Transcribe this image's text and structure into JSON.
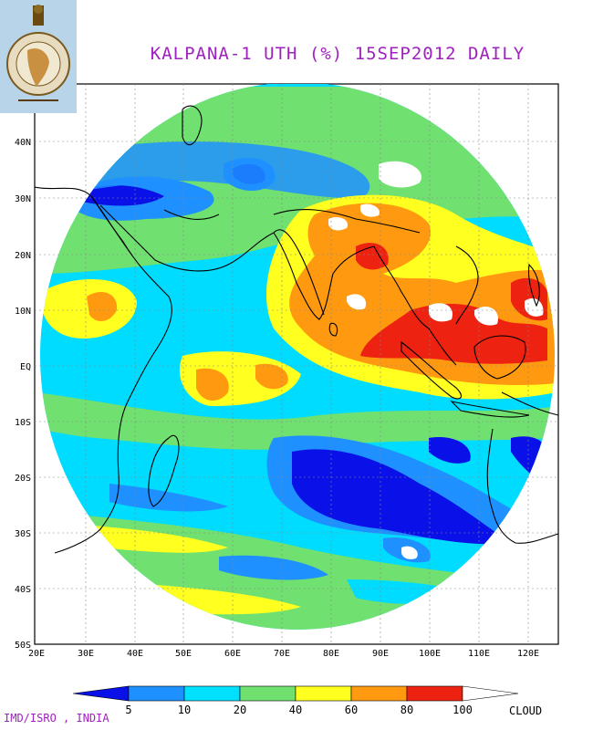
{
  "header": {
    "title": "KALPANA-1 UTH (%) 15SEP2012 DAILY",
    "title_color": "#a020c0",
    "logo_icon": "imd-emblem-logo"
  },
  "map": {
    "lat_labels": [
      "40N",
      "30N",
      "20N",
      "10N",
      "EQ",
      "10S",
      "20S",
      "30S",
      "40S",
      "50S"
    ],
    "lon_labels": [
      "20E",
      "30E",
      "40E",
      "50E",
      "60E",
      "70E",
      "80E",
      "90E",
      "100E",
      "110E",
      "120E"
    ],
    "background_color": "#ffffff",
    "coast_color": "#000000",
    "grid_color": "#999999"
  },
  "legend": {
    "tick_labels": [
      "5",
      "10",
      "20",
      "40",
      "60",
      "80",
      "100"
    ],
    "cloud_label": "CLOUD",
    "colors": [
      "#0a10e8",
      "#1e90ff",
      "#00e0ff",
      "#70e070",
      "#ffff20",
      "#ff9a10",
      "#ee2210",
      "#ffffff"
    ]
  },
  "footer": {
    "credit": "IMD/ISRO , INDIA"
  }
}
